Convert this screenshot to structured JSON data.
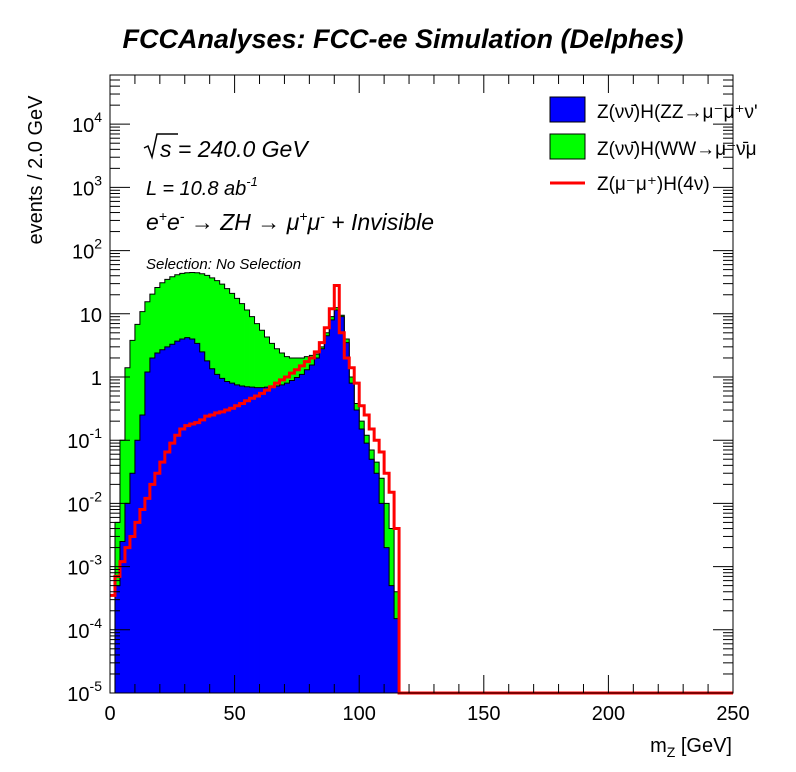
{
  "title": "FCCAnalyses: FCC-ee Simulation (Delphes)",
  "annotations": {
    "sqrt_s_label": "s",
    "sqrt_s_value": " = 240.0 GeV",
    "lumi_text": "L = 10.8 ab",
    "lumi_exp": "-1",
    "process": {
      "e1": "e",
      "e1_sup": "+",
      "e2": "e",
      "e2_sup": "-",
      "arrow1": " → ZH ",
      "arrow2": "→ ",
      "mu1": "μ",
      "mu1_sup": "+",
      "mu2": "μ",
      "mu2_sup": "-",
      "tail": " + Invisible"
    },
    "selection": "Selection: No Selection"
  },
  "legend": {
    "placement": "top-right",
    "entries": [
      {
        "label": "Z(νν̄)H(ZZ→μ⁻μ⁺ν'",
        "color": "#0000ff",
        "style": "fill"
      },
      {
        "label": "Z(νν̄)H(WW→μ⁻ν̄μ",
        "color": "#00ff00",
        "style": "fill"
      },
      {
        "label": "Z(μ⁻μ⁺)H(4ν)",
        "color": "#ff0000",
        "style": "line"
      }
    ]
  },
  "chart_data": {
    "type": "area",
    "title": "FCCAnalyses: FCC-ee Simulation (Delphes)",
    "xlabel": "m_Z [GeV]",
    "ylabel": "events / 2.0 GeV",
    "xlim": [
      0,
      250
    ],
    "ylim": [
      1e-05,
      60000
    ],
    "yscale": "log",
    "bin_width": 2,
    "x_ticks": [
      "0",
      "50",
      "100",
      "150",
      "200",
      "250"
    ],
    "y_ticks": [
      {
        "base": "10",
        "exp": "-5"
      },
      {
        "base": "10",
        "exp": "-4"
      },
      {
        "base": "10",
        "exp": "-3"
      },
      {
        "base": "10",
        "exp": "-2"
      },
      {
        "base": "10",
        "exp": "-1"
      },
      {
        "base": "1",
        "exp": ""
      },
      {
        "base": "10",
        "exp": ""
      },
      {
        "base": "10",
        "exp": "2"
      },
      {
        "base": "10",
        "exp": "3"
      },
      {
        "base": "10",
        "exp": "4"
      }
    ],
    "series": [
      {
        "name": "Z(νν̄)H(ZZ→μ⁻μ⁺ν'",
        "style": "stacked-fill",
        "color": "#0000ff",
        "points": [
          [
            0,
            1e-05
          ],
          [
            2,
            0.0005
          ],
          [
            4,
            0.0025
          ],
          [
            6,
            0.01
          ],
          [
            8,
            0.03
          ],
          [
            10,
            0.1
          ],
          [
            12,
            0.25
          ],
          [
            14,
            1.2
          ],
          [
            16,
            2.0
          ],
          [
            18,
            2.4
          ],
          [
            20,
            2.7
          ],
          [
            22,
            3.0
          ],
          [
            24,
            3.3
          ],
          [
            26,
            3.7
          ],
          [
            28,
            4.0
          ],
          [
            30,
            4.2
          ],
          [
            32,
            4.0
          ],
          [
            34,
            3.4
          ],
          [
            36,
            2.5
          ],
          [
            38,
            1.8
          ],
          [
            40,
            1.35
          ],
          [
            42,
            1.1
          ],
          [
            44,
            0.95
          ],
          [
            46,
            0.85
          ],
          [
            48,
            0.8
          ],
          [
            50,
            0.75
          ],
          [
            52,
            0.72
          ],
          [
            54,
            0.7
          ],
          [
            56,
            0.69
          ],
          [
            58,
            0.68
          ],
          [
            60,
            0.68
          ],
          [
            62,
            0.69
          ],
          [
            64,
            0.7
          ],
          [
            66,
            0.72
          ],
          [
            68,
            0.75
          ],
          [
            70,
            0.8
          ],
          [
            72,
            0.88
          ],
          [
            74,
            0.98
          ],
          [
            76,
            1.1
          ],
          [
            78,
            1.3
          ],
          [
            80,
            1.55
          ],
          [
            82,
            2.0
          ],
          [
            84,
            2.8
          ],
          [
            86,
            4.5
          ],
          [
            88,
            8.0
          ],
          [
            90,
            11.5
          ],
          [
            92,
            9.0
          ],
          [
            94,
            3.5
          ],
          [
            96,
            0.8
          ],
          [
            98,
            0.3
          ],
          [
            100,
            0.15
          ],
          [
            102,
            0.09
          ],
          [
            104,
            0.05
          ],
          [
            106,
            0.03
          ],
          [
            108,
            0.01
          ],
          [
            110,
            0.002
          ],
          [
            112,
            0.0005
          ],
          [
            114,
            0.00015
          ],
          [
            116,
            1e-05
          ]
        ]
      },
      {
        "name": "Z(νν̄)H(WW→μ⁻ν̄μ",
        "style": "stacked-fill",
        "color": "#00ff00",
        "points": [
          [
            0,
            1e-05
          ],
          [
            2,
            0.005
          ],
          [
            4,
            0.1
          ],
          [
            6,
            1.4
          ],
          [
            8,
            3.8
          ],
          [
            10,
            6.8
          ],
          [
            12,
            10.8
          ],
          [
            14,
            15.5
          ],
          [
            16,
            20.5
          ],
          [
            18,
            26.0
          ],
          [
            20,
            31.0
          ],
          [
            22,
            35.0
          ],
          [
            24,
            38.5
          ],
          [
            26,
            41.5
          ],
          [
            28,
            43.5
          ],
          [
            30,
            44.5
          ],
          [
            32,
            45.0
          ],
          [
            34,
            44.5
          ],
          [
            36,
            43.0
          ],
          [
            38,
            40.5
          ],
          [
            40,
            37.0
          ],
          [
            42,
            33.5
          ],
          [
            44,
            29.5
          ],
          [
            46,
            25.0
          ],
          [
            48,
            21.0
          ],
          [
            50,
            17.5
          ],
          [
            52,
            14.5
          ],
          [
            54,
            11.5
          ],
          [
            56,
            9.0
          ],
          [
            58,
            7.0
          ],
          [
            60,
            5.5
          ],
          [
            62,
            4.3
          ],
          [
            64,
            3.4
          ],
          [
            66,
            2.8
          ],
          [
            68,
            2.4
          ],
          [
            70,
            2.1
          ],
          [
            72,
            2.0
          ],
          [
            74,
            2.0
          ],
          [
            76,
            2.0
          ],
          [
            78,
            2.1
          ],
          [
            80,
            2.2
          ],
          [
            82,
            2.3
          ],
          [
            84,
            3.0
          ],
          [
            86,
            5.0
          ],
          [
            88,
            9.0
          ],
          [
            90,
            12.5
          ],
          [
            92,
            9.5
          ],
          [
            94,
            4.0
          ],
          [
            96,
            1.0
          ],
          [
            98,
            0.38
          ],
          [
            100,
            0.2
          ],
          [
            102,
            0.12
          ],
          [
            104,
            0.07
          ],
          [
            106,
            0.045
          ],
          [
            108,
            0.025
          ],
          [
            110,
            0.01
          ],
          [
            112,
            0.004
          ],
          [
            114,
            0.0004
          ],
          [
            116,
            1e-05
          ]
        ]
      },
      {
        "name": "Z(μ⁻μ⁺)H(4ν)",
        "style": "step-line",
        "color": "#ff0000",
        "points": [
          [
            0,
            0.00035
          ],
          [
            2,
            0.0007
          ],
          [
            4,
            0.0012
          ],
          [
            6,
            0.002
          ],
          [
            8,
            0.003
          ],
          [
            10,
            0.005
          ],
          [
            12,
            0.008
          ],
          [
            14,
            0.012
          ],
          [
            16,
            0.02
          ],
          [
            18,
            0.03
          ],
          [
            20,
            0.045
          ],
          [
            22,
            0.065
          ],
          [
            24,
            0.09
          ],
          [
            26,
            0.12
          ],
          [
            28,
            0.15
          ],
          [
            30,
            0.17
          ],
          [
            32,
            0.18
          ],
          [
            34,
            0.19
          ],
          [
            36,
            0.21
          ],
          [
            38,
            0.24
          ],
          [
            40,
            0.25
          ],
          [
            42,
            0.27
          ],
          [
            44,
            0.28
          ],
          [
            46,
            0.3
          ],
          [
            48,
            0.32
          ],
          [
            50,
            0.35
          ],
          [
            52,
            0.38
          ],
          [
            54,
            0.42
          ],
          [
            56,
            0.46
          ],
          [
            58,
            0.5
          ],
          [
            60,
            0.55
          ],
          [
            62,
            0.62
          ],
          [
            64,
            0.7
          ],
          [
            66,
            0.8
          ],
          [
            68,
            0.9
          ],
          [
            70,
            1.0
          ],
          [
            72,
            1.15
          ],
          [
            74,
            1.3
          ],
          [
            76,
            1.5
          ],
          [
            78,
            1.75
          ],
          [
            80,
            2.0
          ],
          [
            82,
            2.5
          ],
          [
            84,
            3.5
          ],
          [
            86,
            6.0
          ],
          [
            88,
            12.0
          ],
          [
            90,
            28.0
          ],
          [
            92,
            5.0
          ],
          [
            94,
            2.0
          ],
          [
            96,
            1.4
          ],
          [
            98,
            0.8
          ],
          [
            100,
            0.35
          ],
          [
            102,
            0.25
          ],
          [
            104,
            0.15
          ],
          [
            106,
            0.1
          ],
          [
            108,
            0.065
          ],
          [
            110,
            0.03
          ],
          [
            112,
            0.015
          ],
          [
            114,
            0.004
          ],
          [
            116,
            1e-05
          ]
        ]
      }
    ]
  }
}
